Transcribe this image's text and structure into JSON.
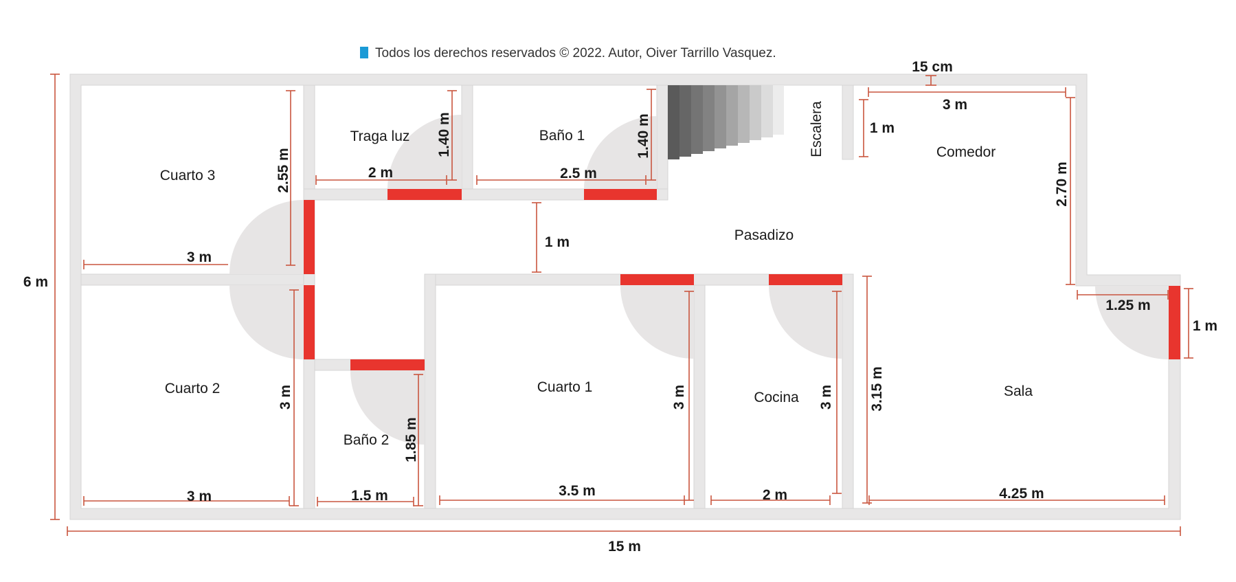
{
  "copyright": "Todos los derechos reservados © 2022. Autor, Oiver Tarrillo Vasquez.",
  "colors": {
    "wall": "#e8e7e7",
    "wall_stroke": "#d6d4d4",
    "door": "#e8352e",
    "door_swing": "#e7e5e5",
    "dimension": "#c9553e",
    "text": "#1a1a1a",
    "copyright_marker": "#1b9ad6"
  },
  "rooms": {
    "cuarto3": "Cuarto 3",
    "traga_luz": "Traga luz",
    "bano1": "Baño 1",
    "escalera": "Escalera",
    "comedor": "Comedor",
    "pasadizo": "Pasadizo",
    "cuarto2": "Cuarto 2",
    "bano2": "Baño 2",
    "cuarto1": "Cuarto 1",
    "cocina": "Cocina",
    "sala": "Sala"
  },
  "dimensions": {
    "total_height": "6 m",
    "total_width": "15 m",
    "wall_thickness": "15 cm",
    "cuarto3_height": "2.55 m",
    "cuarto3_width": "3 m",
    "traga_luz_height": "1.40 m",
    "traga_luz_width": "2 m",
    "bano1_height": "1.40 m",
    "bano1_width": "2.5 m",
    "escalera_gap": "1 m",
    "comedor_width": "3 m",
    "comedor_height": "2.70 m",
    "pasadizo_width": "1 m",
    "cuarto2_height": "3 m",
    "cuarto2_width": "3 m",
    "bano2_height": "1.85 m",
    "bano2_width": "1.5 m",
    "cuarto1_height": "3 m",
    "cuarto1_width": "3.5 m",
    "cocina_height": "3 m",
    "cocina_width": "2 m",
    "sala_height": "3.15 m",
    "sala_width": "4.25 m",
    "entrance_width": "1.25 m",
    "entrance_height": "1 m"
  }
}
